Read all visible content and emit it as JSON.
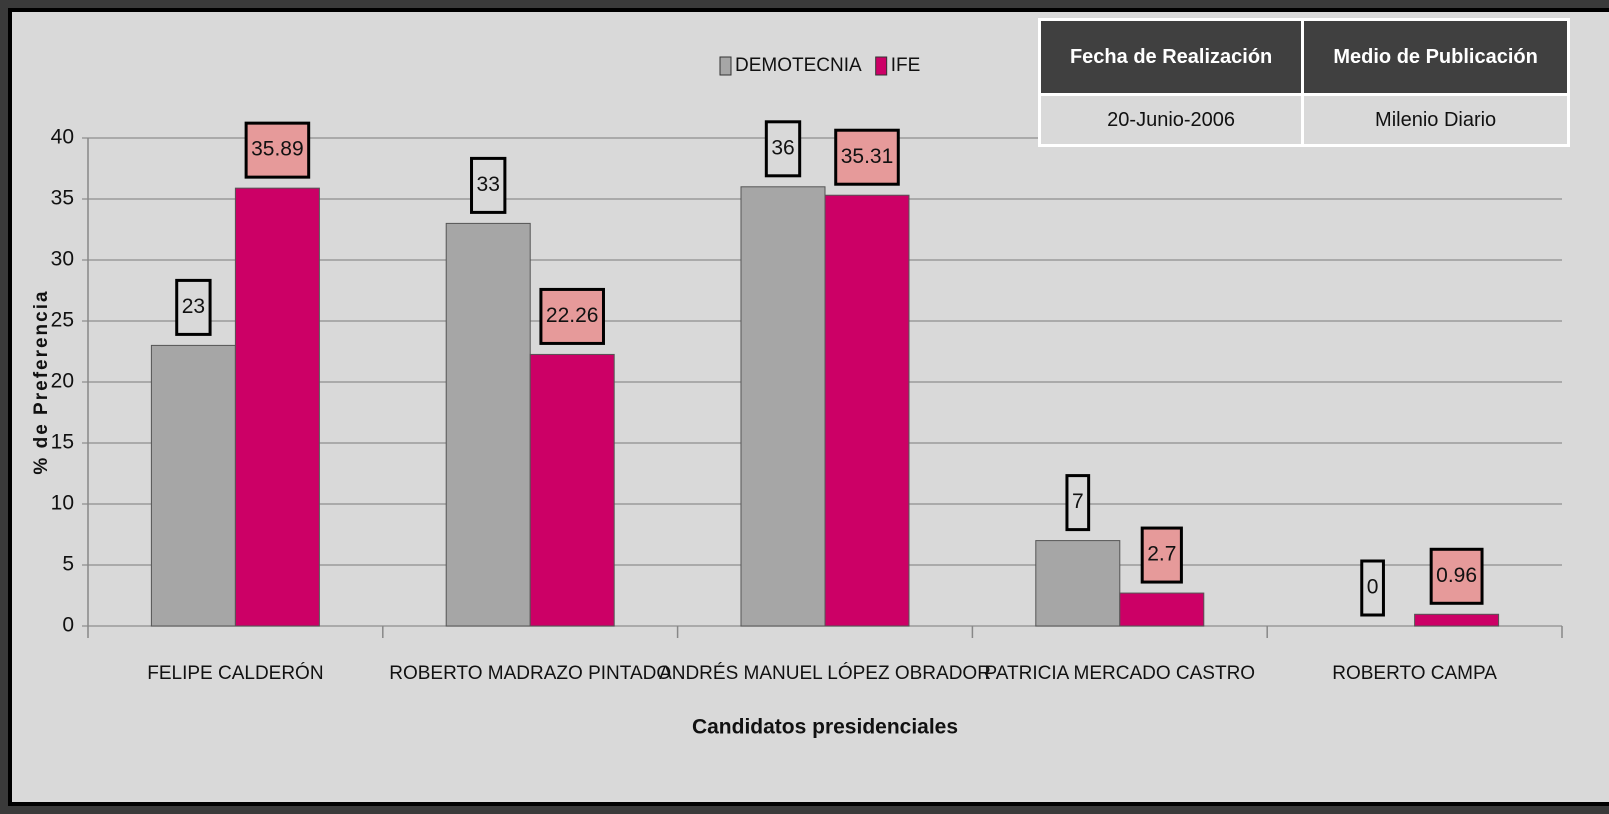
{
  "chart_data": {
    "type": "bar",
    "categories": [
      "FELIPE CALDERÓN",
      "ROBERTO MADRAZO PINTADO",
      "ANDRÉS MANUEL LÓPEZ OBRADOR",
      "PATRICIA MERCADO CASTRO",
      "ROBERTO CAMPA"
    ],
    "series": [
      {
        "name": "DEMOTECNIA",
        "color": "#a6a6a6",
        "values": [
          23,
          33,
          36,
          7,
          0
        ]
      },
      {
        "name": "IFE",
        "color": "#cc0066",
        "values": [
          35.89,
          22.26,
          35.31,
          2.7,
          0.96
        ]
      }
    ],
    "ylabel": "% de Preferencia",
    "xlabel": "Candidatos presidenciales",
    "ylim": [
      0,
      40
    ],
    "yticks": [
      0,
      5,
      10,
      15,
      20,
      25,
      30,
      35,
      40
    ],
    "grid": true,
    "legend": "top"
  },
  "table": {
    "headers": [
      "Fecha de Realización",
      "Medio de Publicación"
    ],
    "rows": [
      [
        "20-Junio-2006",
        "Milenio Diario"
      ]
    ]
  }
}
